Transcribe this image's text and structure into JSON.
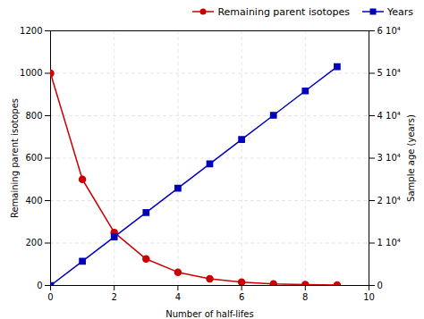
{
  "chart_data": {
    "type": "line",
    "xlabel": "Number of half-lifes",
    "ylabel": "Remaining parent isotopes",
    "y2label": "Sample age (years)",
    "x": [
      0,
      1,
      2,
      3,
      4,
      5,
      6,
      7,
      8,
      9
    ],
    "series": [
      {
        "name": "Remaining parent isotopes",
        "color": "#cc0000",
        "marker": "o",
        "line_style": "solid",
        "values": [
          1000,
          500,
          250,
          125,
          62.5,
          31.25,
          15.625,
          7.8125,
          3.90625,
          1.953125
        ]
      },
      {
        "name": "Years",
        "color": "#0000bb",
        "marker": "s",
        "line_style": "solid",
        "axis": "y2",
        "values": [
          0,
          5730,
          11460,
          17190,
          22920,
          28650,
          34380,
          40110,
          45840,
          51570
        ]
      }
    ],
    "xlim": [
      0,
      10
    ],
    "xticks": [
      0,
      2,
      4,
      6,
      8,
      10
    ],
    "ylim": [
      0,
      1200
    ],
    "yticks": [
      0,
      200,
      400,
      600,
      800,
      1000,
      1200
    ],
    "y2lim": [
      0,
      60000
    ],
    "y2ticks": [
      0,
      {
        "value": 10000,
        "label": "1 10⁴"
      },
      {
        "value": 20000,
        "label": "2 10⁴"
      },
      {
        "value": 30000,
        "label": "3 10⁴"
      },
      {
        "value": 40000,
        "label": "4 10⁴"
      },
      {
        "value": 50000,
        "label": "5 10⁴"
      },
      {
        "value": 60000,
        "label": "6 10⁴"
      }
    ],
    "grid": true,
    "legend": "upper right"
  }
}
